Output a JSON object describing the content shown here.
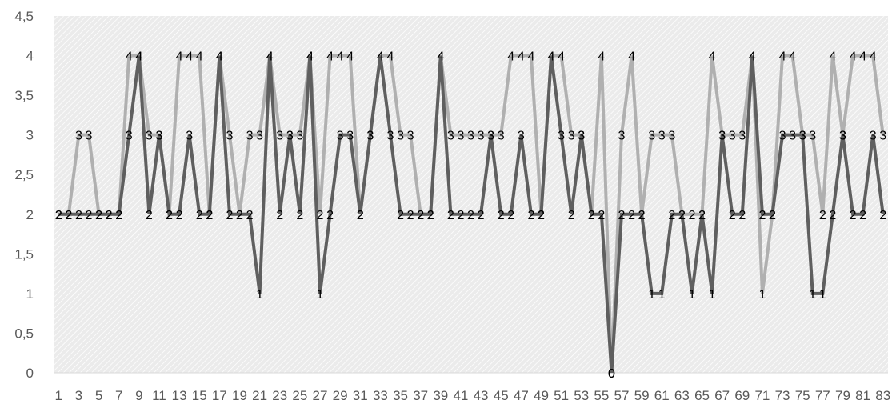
{
  "chart_data": {
    "type": "line",
    "ylim": [
      0,
      4.5
    ],
    "yticks": [
      "0",
      "0,5",
      "1",
      "1,5",
      "2",
      "2,5",
      "3",
      "3,5",
      "4",
      "4,5"
    ],
    "x": [
      1,
      2,
      3,
      4,
      5,
      6,
      7,
      8,
      9,
      10,
      11,
      12,
      13,
      14,
      15,
      16,
      17,
      18,
      19,
      20,
      21,
      22,
      23,
      24,
      25,
      26,
      27,
      28,
      29,
      30,
      31,
      32,
      33,
      34,
      35,
      36,
      37,
      38,
      39,
      40,
      41,
      42,
      43,
      44,
      45,
      46,
      47,
      48,
      49,
      50,
      51,
      52,
      53,
      54,
      55,
      56,
      57,
      58,
      59,
      60,
      61,
      62,
      63,
      64,
      65,
      66,
      67,
      68,
      69,
      70,
      71,
      72,
      73,
      74,
      75,
      76,
      77,
      78,
      79,
      80,
      81,
      82,
      83
    ],
    "xticks": [
      "1",
      "3",
      "5",
      "7",
      "9",
      "11",
      "13",
      "15",
      "17",
      "19",
      "21",
      "23",
      "25",
      "27",
      "29",
      "31",
      "33",
      "35",
      "37",
      "39",
      "41",
      "43",
      "45",
      "47",
      "49",
      "51",
      "53",
      "55",
      "57",
      "59",
      "61",
      "63",
      "65",
      "67",
      "69",
      "71",
      "73",
      "75",
      "77",
      "79",
      "81",
      "83"
    ],
    "grid": true,
    "colors": {
      "series1": "#5f5f5f",
      "series2": "#b0b0b0",
      "plot_bg": "#ebebeb",
      "hatch": "#ffffff",
      "axis": "#d9d9d9"
    },
    "series": [
      {
        "values": [
          2,
          2,
          2,
          2,
          2,
          2,
          2,
          3,
          4,
          2,
          3,
          2,
          2,
          3,
          2,
          2,
          4,
          2,
          2,
          2,
          1,
          4,
          2,
          3,
          2,
          4,
          1,
          2,
          3,
          3,
          2,
          3,
          4,
          3,
          2,
          2,
          2,
          2,
          4,
          2,
          2,
          2,
          2,
          3,
          2,
          2,
          3,
          2,
          2,
          4,
          3,
          2,
          3,
          2,
          2,
          0,
          2,
          2,
          2,
          1,
          1,
          2,
          2,
          1,
          2,
          1,
          3,
          2,
          2,
          4,
          2,
          2,
          3,
          3,
          3,
          1,
          1,
          2,
          3,
          2,
          2,
          3,
          2
        ]
      },
      {
        "values": [
          2,
          2,
          3,
          3,
          2,
          2,
          2,
          4,
          4,
          3,
          3,
          2,
          4,
          4,
          4,
          2,
          4,
          3,
          2,
          3,
          3,
          4,
          3,
          3,
          3,
          4,
          2,
          4,
          4,
          4,
          2,
          3,
          4,
          4,
          3,
          3,
          2,
          2,
          4,
          3,
          3,
          3,
          3,
          3,
          3,
          4,
          4,
          4,
          2,
          4,
          4,
          3,
          3,
          2,
          4,
          0,
          3,
          4,
          2,
          3,
          3,
          3,
          2,
          2,
          2,
          4,
          3,
          3,
          3,
          4,
          1,
          2,
          4,
          4,
          3,
          3,
          2,
          4,
          3,
          4,
          4,
          4,
          3
        ]
      }
    ]
  }
}
